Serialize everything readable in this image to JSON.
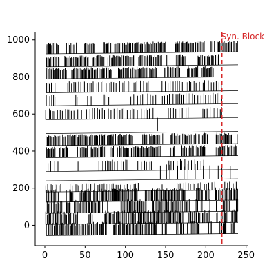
{
  "chart_data": {
    "type": "line",
    "title": "",
    "xlabel": "",
    "ylabel": "",
    "xlim": [
      -12,
      252
    ],
    "ylim": [
      -110,
      1040
    ],
    "x_ticks": [
      0,
      50,
      100,
      150,
      200,
      250
    ],
    "y_ticks": [
      0,
      200,
      400,
      600,
      800,
      1000
    ],
    "x_tick_labels": [
      "0",
      "50",
      "100",
      "150",
      "200",
      "250"
    ],
    "y_tick_labels": [
      "0",
      "200",
      "400",
      "600",
      "800",
      "1000"
    ],
    "grid": false,
    "legend": "none",
    "trace_color": "#000000",
    "annotation": {
      "text": "Syn. Block",
      "x": 220,
      "color": "#d62728",
      "linestyle": "dashed"
    },
    "traces": [
      {
        "baseline": -50,
        "x_start": 0,
        "x_end": 240,
        "spike_height": 70,
        "spike_density": "high",
        "spike_end": 240
      },
      {
        "baseline": 10,
        "x_start": 0,
        "x_end": 240,
        "spike_height": 70,
        "spike_density": "high",
        "spike_end": 240
      },
      {
        "baseline": 70,
        "x_start": 0,
        "x_end": 240,
        "spike_height": 70,
        "spike_density": "high",
        "spike_end": 240
      },
      {
        "baseline": 130,
        "x_start": 0,
        "x_end": 240,
        "spike_height": 70,
        "spike_density": "high",
        "spike_end": 240
      },
      {
        "baseline": 185,
        "x_start": 0,
        "x_end": 240,
        "spike_height": 45,
        "spike_density": "medium",
        "spike_end": 240
      },
      {
        "baseline": 245,
        "x_start": 0,
        "x_end": 240,
        "spike_height": 85,
        "spike_density": "sparse",
        "spike_start": 140,
        "spike_end": 240
      },
      {
        "baseline": 295,
        "x_start": 0,
        "x_end": 240,
        "spike_height": 60,
        "spike_density": "medium",
        "spike_end": 220
      },
      {
        "baseline": 370,
        "x_start": 0,
        "x_end": 240,
        "spike_height": 60,
        "spike_density": "high",
        "spike_end": 240
      },
      {
        "baseline": 435,
        "x_start": 0,
        "x_end": 240,
        "spike_height": 60,
        "spike_density": "high",
        "spike_end": 240
      },
      {
        "baseline": 500,
        "x_start": 0,
        "x_end": 240,
        "spike_height": 60,
        "spike_density": "none",
        "single_spike_x": 140
      },
      {
        "baseline": 575,
        "x_start": 0,
        "x_end": 240,
        "spike_height": 60,
        "spike_density": "medium",
        "spike_end": 220
      },
      {
        "baseline": 650,
        "x_start": 0,
        "x_end": 240,
        "spike_height": 60,
        "spike_density": "medium",
        "spike_end": 220
      },
      {
        "baseline": 720,
        "x_start": 0,
        "x_end": 240,
        "spike_height": 60,
        "spike_density": "medium",
        "spike_end": 220
      },
      {
        "baseline": 795,
        "x_start": 0,
        "x_end": 240,
        "spike_height": 60,
        "spike_density": "high",
        "spike_end": 220
      },
      {
        "baseline": 860,
        "x_start": 0,
        "x_end": 240,
        "spike_height": 60,
        "spike_density": "high",
        "spike_end": 220
      },
      {
        "baseline": 930,
        "x_start": 0,
        "x_end": 240,
        "spike_height": 60,
        "spike_density": "high",
        "spike_end": 240
      }
    ]
  }
}
